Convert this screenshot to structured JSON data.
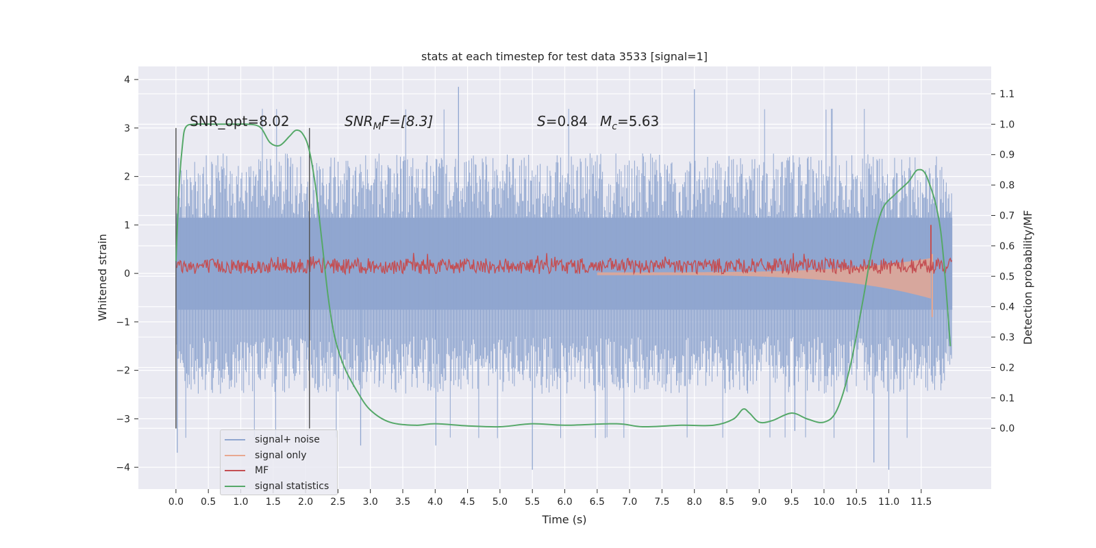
{
  "chart_data": {
    "type": "line",
    "title": "stats at each timestep for test data 3533 [signal=1]",
    "xlabel": "Time (s)",
    "ylabel": "Whitened strain",
    "ylabel_right": "Detection probability/MF",
    "xlim": [
      -0.58,
      12.58
    ],
    "ylim": [
      -4.45,
      4.27
    ],
    "ylim_right": [
      -0.2,
      1.19
    ],
    "x_ticks": [
      "0.0",
      "0.5",
      "1.0",
      "1.5",
      "2.0",
      "2.5",
      "3.0",
      "3.5",
      "4.0",
      "4.5",
      "5.0",
      "5.5",
      "6.0",
      "6.5",
      "7.0",
      "7.5",
      "8.0",
      "8.5",
      "9.0",
      "9.5",
      "10.0",
      "10.5",
      "11.0",
      "11.5"
    ],
    "y_ticks": [
      "−4",
      "−3",
      "−2",
      "−1",
      "0",
      "1",
      "2",
      "3",
      "4"
    ],
    "y_ticks_right": [
      "0.0",
      "0.1",
      "0.2",
      "0.3",
      "0.4",
      "0.5",
      "0.6",
      "0.7",
      "0.8",
      "0.9",
      "1.0",
      "1.1"
    ],
    "grid": true,
    "legend_position": "lower-left",
    "annotations": {
      "snr_opt": "SNR_opt=8.02",
      "snr_mf_prefix": "SNR",
      "snr_mf_sub": "M",
      "snr_mf_rest": "F=[8.3]",
      "s_label": "S",
      "s_value": "=0.84",
      "mc_label": "M",
      "mc_sub": "c",
      "mc_value": "=5.63"
    },
    "window_markers": {
      "x": [
        0.0,
        2.06
      ],
      "y_range": [
        -3.2,
        3.0
      ]
    },
    "series": [
      {
        "name": "signal+ noise",
        "color": "#8fa5cf",
        "x_range": [
          0.0,
          11.98
        ],
        "envelope_center": 0.2,
        "typical_abs_max": 2.5,
        "extremes": [
          -4.1,
          3.85
        ]
      },
      {
        "name": "signal only",
        "color": "#e8a890",
        "x_range": [
          6.5,
          11.68
        ],
        "chirp_peak": 0.55
      },
      {
        "name": "MF",
        "color": "#c44e52",
        "x_range": [
          0.0,
          11.98
        ],
        "center": 0.15,
        "spike_x": 11.65,
        "spike_y": 1.0
      },
      {
        "name": "signal statistics",
        "color": "#55a868",
        "x": [
          0.0,
          0.05,
          0.1,
          0.15,
          0.3,
          0.6,
          0.9,
          1.1,
          1.3,
          1.45,
          1.6,
          1.75,
          1.85,
          1.95,
          2.05,
          2.15,
          2.25,
          2.35,
          2.45,
          2.6,
          2.8,
          3.0,
          3.3,
          3.7,
          4.0,
          4.5,
          5.0,
          5.5,
          6.0,
          6.8,
          7.2,
          7.8,
          8.3,
          8.6,
          8.75,
          8.85,
          9.0,
          9.2,
          9.5,
          9.75,
          10.0,
          10.2,
          10.4,
          10.6,
          10.75,
          10.9,
          11.1,
          11.3,
          11.45,
          11.6,
          11.8,
          11.95
        ],
        "y": [
          0.55,
          0.8,
          0.93,
          0.99,
          1.0,
          1.0,
          1.0,
          1.0,
          0.99,
          0.94,
          0.93,
          0.96,
          0.98,
          0.97,
          0.92,
          0.8,
          0.62,
          0.43,
          0.3,
          0.2,
          0.12,
          0.06,
          0.02,
          0.01,
          0.015,
          0.008,
          0.005,
          0.015,
          0.01,
          0.015,
          0.005,
          0.01,
          0.01,
          0.03,
          0.063,
          0.05,
          0.02,
          0.025,
          0.05,
          0.03,
          0.02,
          0.06,
          0.2,
          0.42,
          0.6,
          0.72,
          0.77,
          0.81,
          0.85,
          0.82,
          0.65,
          0.27
        ]
      }
    ]
  }
}
